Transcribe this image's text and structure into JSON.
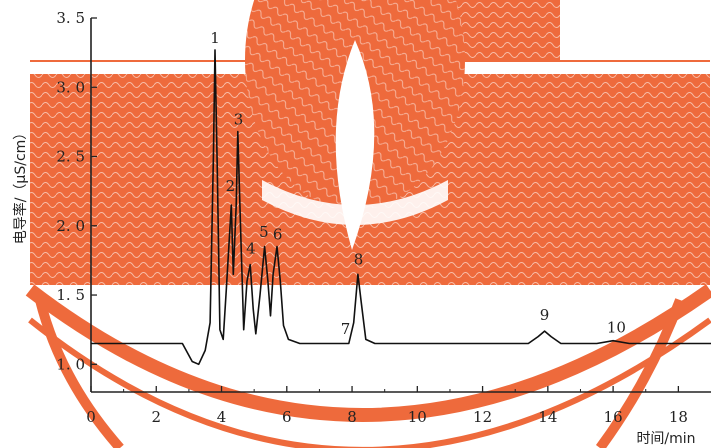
{
  "chart_data": {
    "type": "line",
    "title": "",
    "xlabel": "时间/min",
    "ylabel": "电导率/（μS/cm）",
    "xlim": [
      0,
      19
    ],
    "ylim": [
      0.8,
      3.5
    ],
    "x_ticks": [
      0,
      2,
      4,
      6,
      8,
      10,
      12,
      14,
      16,
      18
    ],
    "y_ticks": [
      1.0,
      1.5,
      2.0,
      2.5,
      3.0,
      3.5
    ],
    "y_tick_labels": [
      "1. 0",
      "1. 5",
      "2. 0",
      "2. 5",
      "3. 0",
      "3. 5"
    ],
    "grid": false,
    "legend": "none",
    "baseline": 1.15,
    "series": [
      {
        "points": [
          [
            0.0,
            1.15
          ],
          [
            2.8,
            1.15
          ],
          [
            3.1,
            1.02
          ],
          [
            3.3,
            1.0
          ],
          [
            3.5,
            1.1
          ],
          [
            3.65,
            1.3
          ],
          [
            3.75,
            2.5
          ],
          [
            3.8,
            3.27
          ],
          [
            3.87,
            2.4
          ],
          [
            3.95,
            1.25
          ],
          [
            4.05,
            1.18
          ],
          [
            4.15,
            1.55
          ],
          [
            4.3,
            2.15
          ],
          [
            4.36,
            1.65
          ],
          [
            4.45,
            2.15
          ],
          [
            4.5,
            2.68
          ],
          [
            4.58,
            2.0
          ],
          [
            4.68,
            1.25
          ],
          [
            4.78,
            1.6
          ],
          [
            4.88,
            1.72
          ],
          [
            4.97,
            1.4
          ],
          [
            5.05,
            1.22
          ],
          [
            5.18,
            1.5
          ],
          [
            5.32,
            1.85
          ],
          [
            5.42,
            1.6
          ],
          [
            5.5,
            1.35
          ],
          [
            5.58,
            1.65
          ],
          [
            5.7,
            1.85
          ],
          [
            5.8,
            1.6
          ],
          [
            5.9,
            1.28
          ],
          [
            6.05,
            1.18
          ],
          [
            6.4,
            1.15
          ],
          [
            7.9,
            1.15
          ],
          [
            8.05,
            1.3
          ],
          [
            8.18,
            1.65
          ],
          [
            8.28,
            1.45
          ],
          [
            8.42,
            1.18
          ],
          [
            8.7,
            1.15
          ],
          [
            13.4,
            1.15
          ],
          [
            13.7,
            1.2
          ],
          [
            13.9,
            1.24
          ],
          [
            14.1,
            1.2
          ],
          [
            14.4,
            1.15
          ],
          [
            15.5,
            1.15
          ],
          [
            16.0,
            1.17
          ],
          [
            16.5,
            1.15
          ],
          [
            19.0,
            1.15
          ]
        ]
      }
    ],
    "annotations": [
      {
        "text": "1",
        "x": 3.8,
        "y": 3.32
      },
      {
        "text": "2",
        "x": 4.27,
        "y": 2.25
      },
      {
        "text": "3",
        "x": 4.52,
        "y": 2.73
      },
      {
        "text": "4",
        "x": 4.9,
        "y": 1.8
      },
      {
        "text": "5",
        "x": 5.3,
        "y": 1.92
      },
      {
        "text": "6",
        "x": 5.72,
        "y": 1.9
      },
      {
        "text": "7",
        "x": 7.8,
        "y": 1.22
      },
      {
        "text": "8",
        "x": 8.2,
        "y": 1.72
      },
      {
        "text": "9",
        "x": 13.9,
        "y": 1.32
      },
      {
        "text": "10",
        "x": 16.1,
        "y": 1.23
      }
    ]
  },
  "watermark": {
    "colors": {
      "primary": "#ee6a3c",
      "secondary": "#ffffff"
    },
    "description_icon": "watermark-emblem"
  }
}
